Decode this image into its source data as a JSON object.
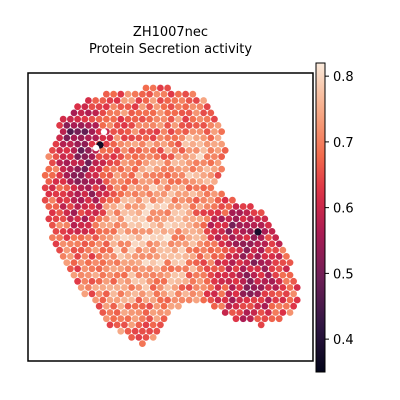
{
  "chart_data": {
    "type": "heatmap",
    "title": "ZH1007nec",
    "subtitle": "Protein Secretion activity",
    "xlabel": "",
    "ylabel": "",
    "colorbar": {
      "ticks": [
        0.4,
        0.5,
        0.6,
        0.7,
        0.8
      ],
      "tick_labels": [
        "0.4",
        "0.5",
        "0.6",
        "0.7",
        "0.8"
      ],
      "range": [
        0.35,
        0.82
      ],
      "colormap": "rocket"
    },
    "grid": false,
    "legend": "none",
    "regions": [
      {
        "name": "global_mean",
        "value": 0.68
      },
      {
        "name": "low_band_upper_left",
        "value": 0.52
      },
      {
        "name": "low_band_right_lobe",
        "value": 0.55
      },
      {
        "name": "min_spot_upper_left",
        "value": 0.37
      },
      {
        "name": "min_spot_right",
        "value": 0.38
      },
      {
        "name": "high_core_center",
        "value": 0.77
      }
    ]
  },
  "colors": {
    "frame": "#000000",
    "background": "#ffffff"
  }
}
